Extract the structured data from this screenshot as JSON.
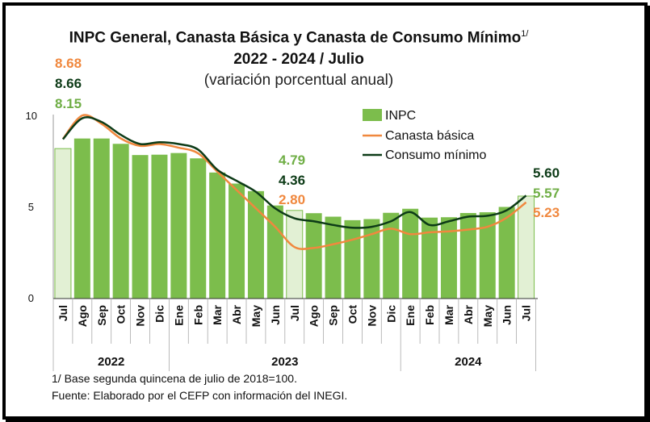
{
  "title": {
    "line1": "INPC General, Canasta Básica  y Canasta de Consumo Mínimo",
    "line1_sup": "1/",
    "line2": "2022 - 2024 / Julio",
    "line3": "(variación porcentual anual)"
  },
  "notes": {
    "note1": "1/ Base segunda quincena de julio de 2018=100.",
    "source": "Fuente: Elaborado por el CEFP con información del INEGI."
  },
  "colors": {
    "inpc": "#7cbd4c",
    "inpc_highlight": "#e2f0d4",
    "canasta": "#f0883e",
    "consumo": "#0d3b17",
    "inpc_label": "#6fae45"
  },
  "chart_data": {
    "type": "bar",
    "categories": [
      "Jul",
      "Ago",
      "Sep",
      "Oct",
      "Nov",
      "Dic",
      "Ene",
      "Feb",
      "Mar",
      "Abr",
      "May",
      "Jun",
      "Jul",
      "Ago",
      "Sep",
      "Oct",
      "Nov",
      "Dic",
      "Ene",
      "Feb",
      "Mar",
      "Abr",
      "May",
      "Jun",
      "Jul"
    ],
    "year_groups": [
      {
        "label": "2022",
        "start": 0,
        "end": 5
      },
      {
        "label": "2023",
        "start": 6,
        "end": 17
      },
      {
        "label": "2024",
        "start": 18,
        "end": 24
      }
    ],
    "highlight_indices": [
      0,
      12,
      24
    ],
    "series": [
      {
        "name": "INPC",
        "kind": "bar",
        "values": [
          8.15,
          8.7,
          8.7,
          8.41,
          7.8,
          7.82,
          7.91,
          7.62,
          6.85,
          6.25,
          5.84,
          5.06,
          4.79,
          4.64,
          4.45,
          4.26,
          4.32,
          4.66,
          4.88,
          4.4,
          4.42,
          4.65,
          4.69,
          4.98,
          5.57
        ]
      },
      {
        "name": "Canasta básica",
        "kind": "line",
        "values": [
          8.68,
          9.95,
          9.5,
          8.7,
          8.3,
          8.4,
          8.2,
          7.9,
          6.9,
          5.9,
          4.9,
          3.9,
          2.8,
          2.75,
          2.95,
          3.2,
          3.5,
          3.8,
          3.5,
          3.6,
          3.65,
          3.75,
          3.9,
          4.4,
          5.23
        ]
      },
      {
        "name": "Consumo mínimo",
        "kind": "line",
        "values": [
          8.66,
          9.8,
          9.6,
          8.9,
          8.4,
          8.5,
          8.4,
          8.1,
          7.0,
          6.4,
          5.8,
          4.9,
          4.36,
          4.2,
          4.0,
          3.85,
          3.9,
          4.2,
          4.7,
          4.0,
          4.2,
          4.45,
          4.5,
          4.8,
          5.6
        ]
      }
    ],
    "data_labels": {
      "start": {
        "canasta": "8.68",
        "consumo": "8.66",
        "inpc": "8.15"
      },
      "mid": {
        "inpc": "4.79",
        "consumo": "4.36",
        "canasta": "2.80"
      },
      "end": {
        "consumo": "5.60",
        "inpc": "5.57",
        "canasta": "5.23"
      }
    },
    "y_ticks": [
      "0",
      "5",
      "10"
    ],
    "ylim": [
      0,
      10
    ],
    "legend_position": "top-right",
    "grid": false
  }
}
